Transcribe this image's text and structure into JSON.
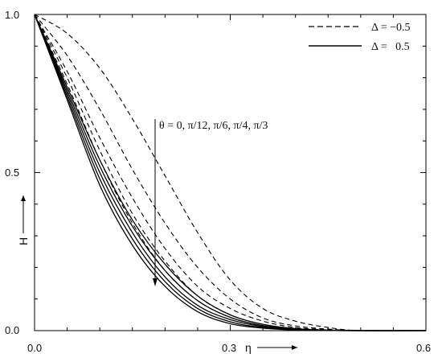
{
  "chart_data": {
    "type": "line",
    "xlabel": "η",
    "ylabel": "H",
    "xlim": [
      0,
      0.6
    ],
    "ylim": [
      0,
      1.0
    ],
    "x_ticks": [
      "0.0",
      "0.3",
      "0.6"
    ],
    "y_ticks": [
      "0.0",
      "0.5",
      "1.0"
    ],
    "legend": {
      "position": "top-right",
      "entries": [
        {
          "label": "Δ = −0.5",
          "style": "dashed"
        },
        {
          "label": "Δ =   0.5",
          "style": "solid"
        }
      ]
    },
    "annotation": {
      "text": "θ = 0, π/12, π/6, π/4, π/3",
      "arrow": "down"
    },
    "series": [
      {
        "group": "Δ = −0.5",
        "style": "dashed",
        "points": [
          [
            0,
            1.0
          ],
          [
            0.05,
            0.94
          ],
          [
            0.1,
            0.83
          ],
          [
            0.15,
            0.67
          ],
          [
            0.2,
            0.49
          ],
          [
            0.25,
            0.31
          ],
          [
            0.3,
            0.16
          ],
          [
            0.35,
            0.07
          ],
          [
            0.4,
            0.03
          ],
          [
            0.45,
            0.01
          ],
          [
            0.5,
            0.0
          ],
          [
            0.6,
            0.0
          ]
        ]
      },
      {
        "group": "Δ = −0.5",
        "style": "dashed",
        "points": [
          [
            0,
            1.0
          ],
          [
            0.05,
            0.87
          ],
          [
            0.1,
            0.7
          ],
          [
            0.15,
            0.51
          ],
          [
            0.2,
            0.34
          ],
          [
            0.25,
            0.2
          ],
          [
            0.3,
            0.1
          ],
          [
            0.35,
            0.04
          ],
          [
            0.4,
            0.015
          ],
          [
            0.45,
            0.005
          ],
          [
            0.5,
            0.0
          ],
          [
            0.6,
            0.0
          ]
        ]
      },
      {
        "group": "Δ = −0.5",
        "style": "dashed",
        "points": [
          [
            0,
            1.0
          ],
          [
            0.05,
            0.82
          ],
          [
            0.1,
            0.61
          ],
          [
            0.15,
            0.42
          ],
          [
            0.2,
            0.26
          ],
          [
            0.25,
            0.14
          ],
          [
            0.3,
            0.07
          ],
          [
            0.35,
            0.03
          ],
          [
            0.4,
            0.01
          ],
          [
            0.45,
            0.003
          ],
          [
            0.5,
            0.0
          ],
          [
            0.6,
            0.0
          ]
        ]
      },
      {
        "group": "Δ = −0.5",
        "style": "dashed",
        "points": [
          [
            0,
            1.0
          ],
          [
            0.05,
            0.8
          ],
          [
            0.1,
            0.57
          ],
          [
            0.15,
            0.37
          ],
          [
            0.2,
            0.22
          ],
          [
            0.25,
            0.11
          ],
          [
            0.3,
            0.05
          ],
          [
            0.35,
            0.02
          ],
          [
            0.4,
            0.007
          ],
          [
            0.45,
            0.002
          ],
          [
            0.5,
            0.0
          ],
          [
            0.6,
            0.0
          ]
        ]
      },
      {
        "group": "Δ = −0.5",
        "style": "dashed",
        "points": [
          [
            0,
            1.0
          ],
          [
            0.05,
            0.78
          ],
          [
            0.1,
            0.54
          ],
          [
            0.15,
            0.34
          ],
          [
            0.2,
            0.19
          ],
          [
            0.25,
            0.095
          ],
          [
            0.3,
            0.042
          ],
          [
            0.35,
            0.016
          ],
          [
            0.4,
            0.005
          ],
          [
            0.45,
            0.001
          ],
          [
            0.5,
            0.0
          ],
          [
            0.6,
            0.0
          ]
        ]
      },
      {
        "group": "Δ = 0.5",
        "style": "solid",
        "points": [
          [
            0,
            1.0
          ],
          [
            0.05,
            0.77
          ],
          [
            0.1,
            0.54
          ],
          [
            0.15,
            0.35
          ],
          [
            0.2,
            0.21
          ],
          [
            0.25,
            0.11
          ],
          [
            0.3,
            0.05
          ],
          [
            0.35,
            0.02
          ],
          [
            0.4,
            0.006
          ],
          [
            0.45,
            0.0015
          ],
          [
            0.5,
            0.0
          ],
          [
            0.6,
            0.0
          ]
        ]
      },
      {
        "group": "Δ = 0.5",
        "style": "solid",
        "points": [
          [
            0,
            1.0
          ],
          [
            0.05,
            0.76
          ],
          [
            0.1,
            0.52
          ],
          [
            0.15,
            0.33
          ],
          [
            0.2,
            0.19
          ],
          [
            0.25,
            0.095
          ],
          [
            0.3,
            0.042
          ],
          [
            0.35,
            0.016
          ],
          [
            0.4,
            0.005
          ],
          [
            0.45,
            0.001
          ],
          [
            0.5,
            0.0
          ],
          [
            0.6,
            0.0
          ]
        ]
      },
      {
        "group": "Δ = 0.5",
        "style": "solid",
        "points": [
          [
            0,
            1.0
          ],
          [
            0.05,
            0.75
          ],
          [
            0.1,
            0.5
          ],
          [
            0.15,
            0.31
          ],
          [
            0.2,
            0.17
          ],
          [
            0.25,
            0.08
          ],
          [
            0.3,
            0.035
          ],
          [
            0.35,
            0.013
          ],
          [
            0.4,
            0.004
          ],
          [
            0.45,
            0.001
          ],
          [
            0.5,
            0.0
          ],
          [
            0.6,
            0.0
          ]
        ]
      },
      {
        "group": "Δ = 0.5",
        "style": "solid",
        "points": [
          [
            0,
            1.0
          ],
          [
            0.05,
            0.74
          ],
          [
            0.1,
            0.48
          ],
          [
            0.15,
            0.29
          ],
          [
            0.2,
            0.155
          ],
          [
            0.25,
            0.07
          ],
          [
            0.3,
            0.028
          ],
          [
            0.35,
            0.01
          ],
          [
            0.4,
            0.003
          ],
          [
            0.45,
            0.0007
          ],
          [
            0.5,
            0.0
          ],
          [
            0.6,
            0.0
          ]
        ]
      },
      {
        "group": "Δ = 0.5",
        "style": "solid",
        "points": [
          [
            0,
            1.0
          ],
          [
            0.05,
            0.73
          ],
          [
            0.1,
            0.46
          ],
          [
            0.15,
            0.27
          ],
          [
            0.2,
            0.14
          ],
          [
            0.25,
            0.06
          ],
          [
            0.3,
            0.022
          ],
          [
            0.35,
            0.008
          ],
          [
            0.4,
            0.002
          ],
          [
            0.45,
            0.0005
          ],
          [
            0.5,
            0.0
          ],
          [
            0.6,
            0.0
          ]
        ]
      }
    ]
  }
}
